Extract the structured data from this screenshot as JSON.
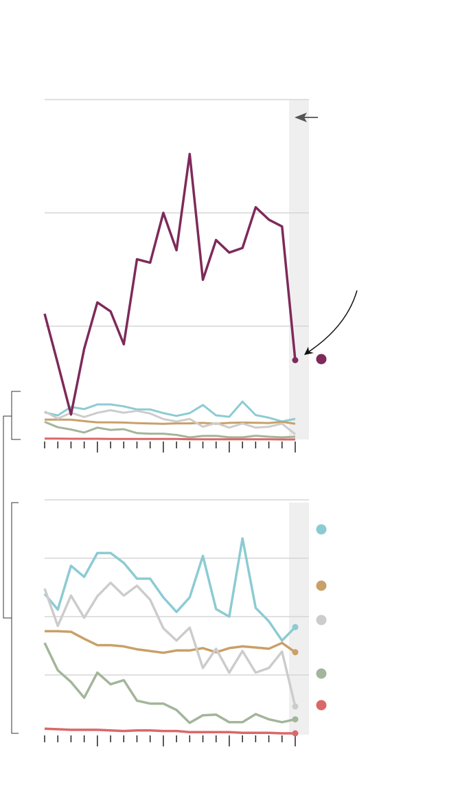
{
  "chart_data": [
    {
      "type": "line",
      "categories": [
        null,
        null,
        null,
        null,
        null,
        null,
        null,
        null,
        null,
        null,
        null,
        null,
        null,
        null,
        null,
        null,
        null,
        null,
        null,
        null
      ],
      "ylim": [
        0,
        300
      ],
      "yticks": [
        100,
        200,
        300
      ],
      "grid": true,
      "series": [
        {
          "color": "#7e2a5a",
          "values": [
            111,
            67,
            22,
            80,
            121,
            113,
            84,
            159,
            156,
            200,
            167,
            252,
            141,
            176,
            165,
            169,
            205,
            194,
            188,
            70
          ]
        }
      ]
    },
    {
      "type": "line",
      "categories": [
        null,
        null,
        null,
        null,
        null,
        null,
        null,
        null,
        null,
        null,
        null,
        null,
        null,
        null,
        null,
        null,
        null,
        null,
        null,
        null
      ],
      "ylim": [
        0,
        40
      ],
      "yticks": [
        10,
        20,
        30,
        40
      ],
      "grid": true,
      "series": [
        {
          "color": "#8ccbd3",
          "values": [
            23.9,
            21.2,
            28.7,
            26.8,
            30.9,
            30.9,
            29.2,
            26.5,
            26.5,
            23.3,
            20.8,
            23.3,
            30.4,
            21.3,
            20,
            33.4,
            21.5,
            19.2,
            15.9,
            18.2
          ]
        },
        {
          "color": "#c9a068",
          "values": [
            17.5,
            17.5,
            17.4,
            16.2,
            15.1,
            15.1,
            14.9,
            14.4,
            14.1,
            13.8,
            14.2,
            14.2,
            14.6,
            13.9,
            14.6,
            14.9,
            14.7,
            14.5,
            15.5,
            13.9
          ]
        },
        {
          "color": "#cccccc",
          "values": [
            24.8,
            18.4,
            23.6,
            19.8,
            23.5,
            25.8,
            23.6,
            25.3,
            22.9,
            18,
            15.9,
            18.1,
            11.2,
            14.5,
            10.4,
            14.1,
            10.4,
            11.2,
            14,
            4.6
          ]
        },
        {
          "color": "#a3b59a",
          "values": [
            15.5,
            10.8,
            8.8,
            6.1,
            10.4,
            8.4,
            9.1,
            5.6,
            5.1,
            5.1,
            4,
            1.8,
            3.1,
            3.2,
            1.9,
            1.9,
            3.3,
            2.4,
            1.9,
            2.4
          ]
        },
        {
          "color": "#d9686a",
          "values": [
            0.8,
            0.7,
            0.6,
            0.6,
            0.6,
            0.5,
            0.4,
            0.5,
            0.5,
            0.4,
            0.4,
            0.2,
            0.2,
            0.2,
            0.2,
            0.1,
            0.1,
            0.1,
            0,
            0
          ]
        }
      ]
    }
  ]
}
